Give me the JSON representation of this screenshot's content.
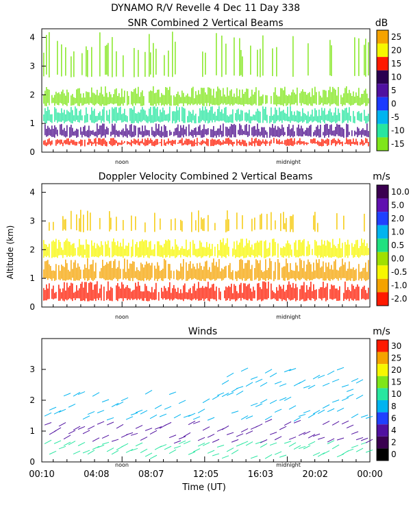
{
  "figure": {
    "title_line1": "DYNAMO R/V Revelle    4 Dec 11 Day 338",
    "ylabel": "Altitude (km)",
    "xlabel": "Time (UT)",
    "time_ticks": [
      "00:10",
      "04:08",
      "08:07",
      "12:05",
      "16:03",
      "20:02",
      "00:00"
    ],
    "period_labels": {
      "noon": "noon",
      "midnight": "midnight"
    }
  },
  "chart_data": [
    {
      "type": "heatmap",
      "title": "SNR Combined 2 Vertical Beams",
      "colorbar_unit": "dB",
      "colorbar_levels": [
        "25",
        "20",
        "15",
        "10",
        "5",
        "0",
        "-5",
        "-10",
        "-15"
      ],
      "colorbar_colors": [
        "#f5a300",
        "#f7f700",
        "#ff1a00",
        "#2a0050",
        "#5010a0",
        "#1a3aff",
        "#00b4f0",
        "#28e6a0",
        "#7fe61a"
      ],
      "y_ticks": [
        "0",
        "1",
        "2",
        "3",
        "4"
      ],
      "ylim": [
        0,
        4.3
      ],
      "xlim_hours": [
        0.17,
        24
      ],
      "layers": [
        {
          "name": "surface",
          "color": "#ff1a00",
          "alt_range": [
            0.2,
            0.5
          ]
        },
        {
          "name": "low",
          "color": "#4a0a8a",
          "alt_range": [
            0.5,
            1.0
          ]
        },
        {
          "name": "mid",
          "color": "#28e6a0",
          "alt_range": [
            1.0,
            1.6
          ]
        },
        {
          "name": "upper",
          "color": "#7fe61a",
          "alt_range": [
            1.6,
            2.3
          ]
        },
        {
          "name": "top",
          "color": "#7fe61a",
          "alt_range": [
            2.6,
            4.2
          ]
        }
      ]
    },
    {
      "type": "heatmap",
      "title": "Doppler Velocity Combined 2 Vertical Beams",
      "colorbar_unit": "m/s",
      "colorbar_levels": [
        "10.0",
        "5.0",
        "2.0",
        "1.0",
        "0.5",
        "0.0",
        "-0.5",
        "-1.0",
        "-2.0"
      ],
      "colorbar_colors": [
        "#3a0050",
        "#6010b0",
        "#2040ff",
        "#00b4f0",
        "#20e080",
        "#a0e000",
        "#f7f700",
        "#f5a300",
        "#ff1a00"
      ],
      "y_ticks": [
        "0",
        "1",
        "2",
        "3",
        "4"
      ],
      "ylim": [
        0,
        4.3
      ],
      "xlim_hours": [
        0.17,
        24
      ],
      "layers": [
        {
          "name": "surface",
          "color": "#ff1a00",
          "alt_range": [
            0.2,
            0.9
          ]
        },
        {
          "name": "low",
          "color": "#f5a300",
          "alt_range": [
            0.9,
            1.7
          ]
        },
        {
          "name": "upper",
          "color": "#f7f700",
          "alt_range": [
            1.7,
            2.4
          ]
        },
        {
          "name": "top",
          "color": "#f5c800",
          "alt_range": [
            2.6,
            3.4
          ]
        }
      ]
    },
    {
      "type": "scatter",
      "title": "Winds",
      "colorbar_unit": "m/s",
      "colorbar_levels": [
        "30",
        "25",
        "20",
        "15",
        "10",
        "8",
        "6",
        "4",
        "2",
        "0"
      ],
      "colorbar_colors": [
        "#ff1a00",
        "#f5a300",
        "#f7f700",
        "#7fe61a",
        "#28e6a0",
        "#00b4f0",
        "#2040ff",
        "#5010a0",
        "#3a0050",
        "#000000"
      ],
      "y_ticks": [
        "0",
        "1",
        "2",
        "3"
      ],
      "ylim": [
        0,
        4
      ],
      "xlim_hours": [
        0.17,
        24
      ],
      "layers": [
        {
          "name": "near-surface",
          "color": "#28e6a0",
          "alt_range": [
            0.1,
            0.6
          ]
        },
        {
          "name": "low",
          "color": "#5010a0",
          "alt_range": [
            0.6,
            1.3
          ]
        },
        {
          "name": "mid",
          "color": "#00b4f0",
          "alt_range": [
            1.3,
            2.2
          ]
        },
        {
          "name": "upper",
          "color": "#00b4f0",
          "alt_range": [
            2.2,
            3.0
          ]
        }
      ]
    }
  ]
}
